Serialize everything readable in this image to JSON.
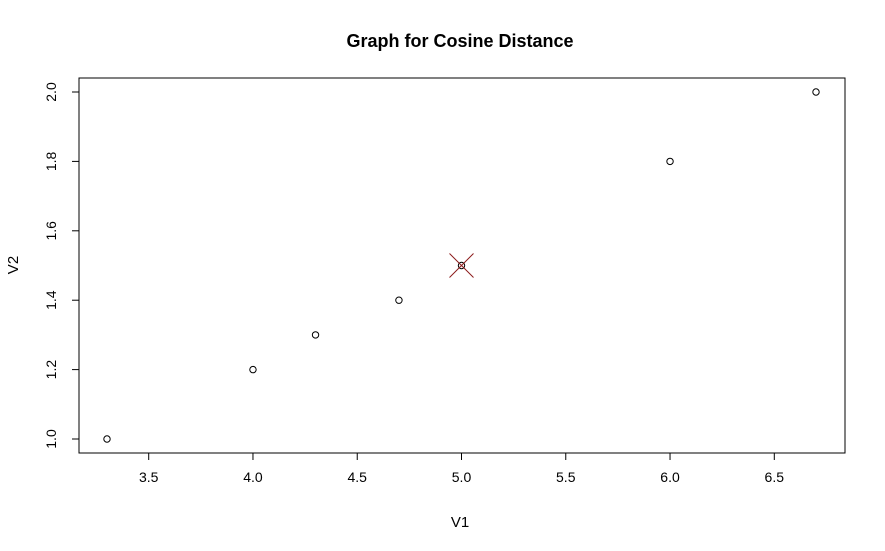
{
  "chart_data": {
    "type": "scatter",
    "title": "Graph for Cosine Distance",
    "xlabel": "V1",
    "ylabel": "V2",
    "xlim": [
      3.3,
      6.7
    ],
    "ylim": [
      1.0,
      2.0
    ],
    "x_ticks": [
      "3.5",
      "4.0",
      "4.5",
      "5.0",
      "5.5",
      "6.0",
      "6.5"
    ],
    "y_ticks": [
      "1.0",
      "1.2",
      "1.4",
      "1.6",
      "1.8",
      "2.0"
    ],
    "grid": false,
    "series": [
      {
        "marker": "open-circle",
        "color": "#000000",
        "points": [
          {
            "x": 3.3,
            "y": 1.0
          },
          {
            "x": 4.0,
            "y": 1.2
          },
          {
            "x": 4.3,
            "y": 1.3
          },
          {
            "x": 4.7,
            "y": 1.4
          },
          {
            "x": 5.0,
            "y": 1.5
          },
          {
            "x": 6.0,
            "y": 1.8
          },
          {
            "x": 6.7,
            "y": 2.0
          }
        ]
      }
    ],
    "highlight": {
      "marker": "x-cross",
      "color": "#8b1a1a",
      "point": {
        "x": 5.0,
        "y": 1.5
      }
    }
  }
}
